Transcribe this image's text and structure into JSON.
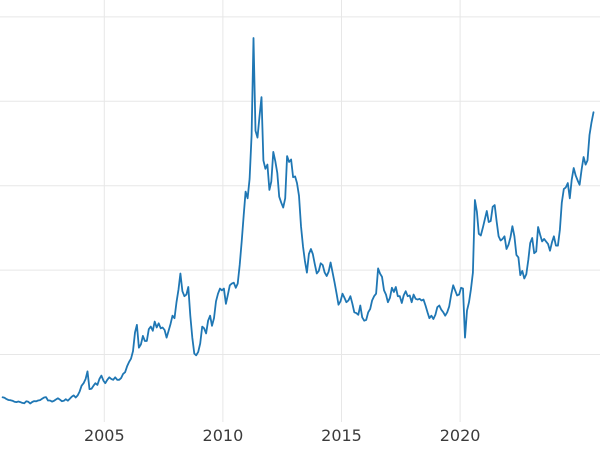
{
  "chart_data": {
    "type": "line",
    "title": "",
    "xlabel": "",
    "ylabel": "",
    "legend": "none",
    "grid": true,
    "background": "#ffffff",
    "line_color": "#1f77b4",
    "line_width": 1.8,
    "grid_color": "#e7e7e7",
    "tick_label_color": "#3b3b3b",
    "tick_label_size": 16,
    "xlim": [
      2000.6,
      2025.9
    ],
    "ylim": [
      2,
      52
    ],
    "x_ticks": [
      2005,
      2010,
      2015,
      2020
    ],
    "x_tick_labels": [
      "2005",
      "2010",
      "2015",
      "2020"
    ],
    "y_gridlines": [
      10,
      20,
      30,
      40,
      50
    ],
    "x_start": 2000.708,
    "x_step": 0.0833333,
    "values": [
      4.93,
      4.87,
      4.71,
      4.61,
      4.58,
      4.52,
      4.4,
      4.36,
      4.43,
      4.36,
      4.26,
      4.21,
      4.45,
      4.39,
      4.19,
      4.37,
      4.48,
      4.45,
      4.55,
      4.6,
      4.75,
      4.9,
      4.95,
      4.55,
      4.55,
      4.42,
      4.5,
      4.67,
      4.81,
      4.65,
      4.46,
      4.51,
      4.7,
      4.52,
      4.76,
      5.0,
      5.15,
      4.9,
      5.15,
      5.6,
      6.3,
      6.6,
      7.1,
      8.0,
      5.9,
      5.95,
      6.3,
      6.6,
      6.4,
      7.1,
      7.5,
      6.9,
      6.6,
      7.0,
      7.3,
      7.1,
      7.0,
      7.3,
      7.0,
      7.0,
      7.2,
      7.7,
      7.9,
      8.6,
      9.1,
      9.5,
      10.4,
      12.6,
      13.5,
      10.8,
      11.2,
      12.2,
      11.6,
      11.6,
      13.0,
      13.3,
      12.8,
      13.9,
      13.2,
      13.7,
      13.1,
      13.2,
      12.9,
      12.0,
      12.8,
      13.6,
      14.6,
      14.3,
      16.2,
      17.7,
      19.6,
      17.5,
      16.9,
      17.1,
      18.0,
      14.6,
      12.0,
      10.1,
      9.9,
      10.3,
      11.3,
      13.3,
      13.1,
      12.5,
      14.0,
      14.6,
      13.4,
      14.3,
      16.3,
      17.2,
      17.8,
      17.6,
      17.8,
      16.0,
      17.1,
      18.2,
      18.4,
      18.5,
      17.9,
      18.4,
      20.6,
      23.4,
      26.5,
      29.3,
      28.5,
      30.8,
      36.0,
      47.5,
      36.5,
      35.7,
      38.2,
      40.5,
      33.0,
      32.0,
      32.5,
      29.5,
      30.5,
      34.0,
      32.9,
      31.5,
      28.7,
      28.0,
      27.4,
      28.5,
      33.5,
      32.8,
      33.1,
      31.0,
      31.1,
      30.3,
      28.8,
      25.2,
      22.8,
      21.1,
      19.7,
      21.9,
      22.5,
      21.9,
      20.7,
      19.6,
      19.9,
      20.8,
      20.6,
      19.7,
      19.3,
      19.8,
      20.9,
      19.7,
      18.5,
      17.2,
      15.9,
      16.3,
      17.2,
      16.7,
      16.2,
      16.4,
      16.9,
      16.0,
      15.0,
      14.9,
      14.7,
      15.8,
      14.4,
      14.0,
      14.1,
      15.0,
      15.4,
      16.4,
      16.9,
      17.2,
      20.2,
      19.6,
      19.2,
      17.6,
      17.1,
      16.2,
      16.7,
      17.9,
      17.4,
      18.0,
      16.9,
      16.9,
      16.1,
      17.0,
      17.5,
      16.9,
      17.0,
      16.2,
      17.1,
      16.6,
      16.5,
      16.6,
      16.4,
      16.5,
      15.8,
      15.0,
      14.3,
      14.6,
      14.2,
      14.7,
      15.6,
      15.8,
      15.3,
      15.0,
      14.6,
      15.0,
      15.7,
      17.1,
      18.2,
      17.6,
      17.0,
      17.1,
      17.9,
      17.8,
      12.0,
      15.2,
      16.2,
      17.7,
      19.7,
      28.3,
      26.9,
      24.3,
      24.1,
      25.0,
      26.0,
      27.0,
      25.7,
      25.8,
      27.5,
      27.7,
      25.8,
      24.0,
      23.5,
      23.7,
      24.0,
      22.5,
      23.0,
      23.9,
      25.2,
      24.0,
      21.8,
      21.5,
      19.4,
      19.9,
      19.0,
      19.5,
      21.2,
      23.2,
      23.8,
      22.0,
      22.2,
      25.1,
      24.2,
      23.4,
      23.7,
      23.4,
      23.1,
      22.3,
      23.3,
      24.0,
      22.9,
      22.9,
      24.8,
      28.0,
      29.6,
      29.8,
      30.3,
      28.5,
      30.7,
      32.1,
      31.2,
      30.6,
      30.1,
      31.9,
      33.4,
      32.5,
      33.0,
      36.0,
      37.5,
      38.7
    ]
  }
}
